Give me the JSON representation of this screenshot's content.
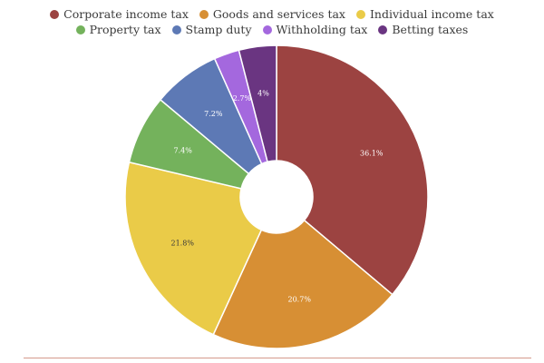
{
  "chart_data": {
    "type": "pie",
    "donut": true,
    "legend_position": "top",
    "categories": [
      "Corporate income tax",
      "Goods and services tax",
      "Individual income tax",
      "Property tax",
      "Stamp duty",
      "Withholding tax",
      "Betting taxes"
    ],
    "values": [
      36.1,
      20.7,
      21.8,
      7.4,
      7.2,
      2.7,
      4
    ],
    "labels": [
      "36.1%",
      "20.7%",
      "21.8%",
      "7.4%",
      "7.2%",
      "2.7%",
      "4%"
    ],
    "colors": [
      "#9c4341",
      "#d78f34",
      "#eacb48",
      "#74b25c",
      "#5d79b5",
      "#a468de",
      "#6a3581"
    ]
  }
}
